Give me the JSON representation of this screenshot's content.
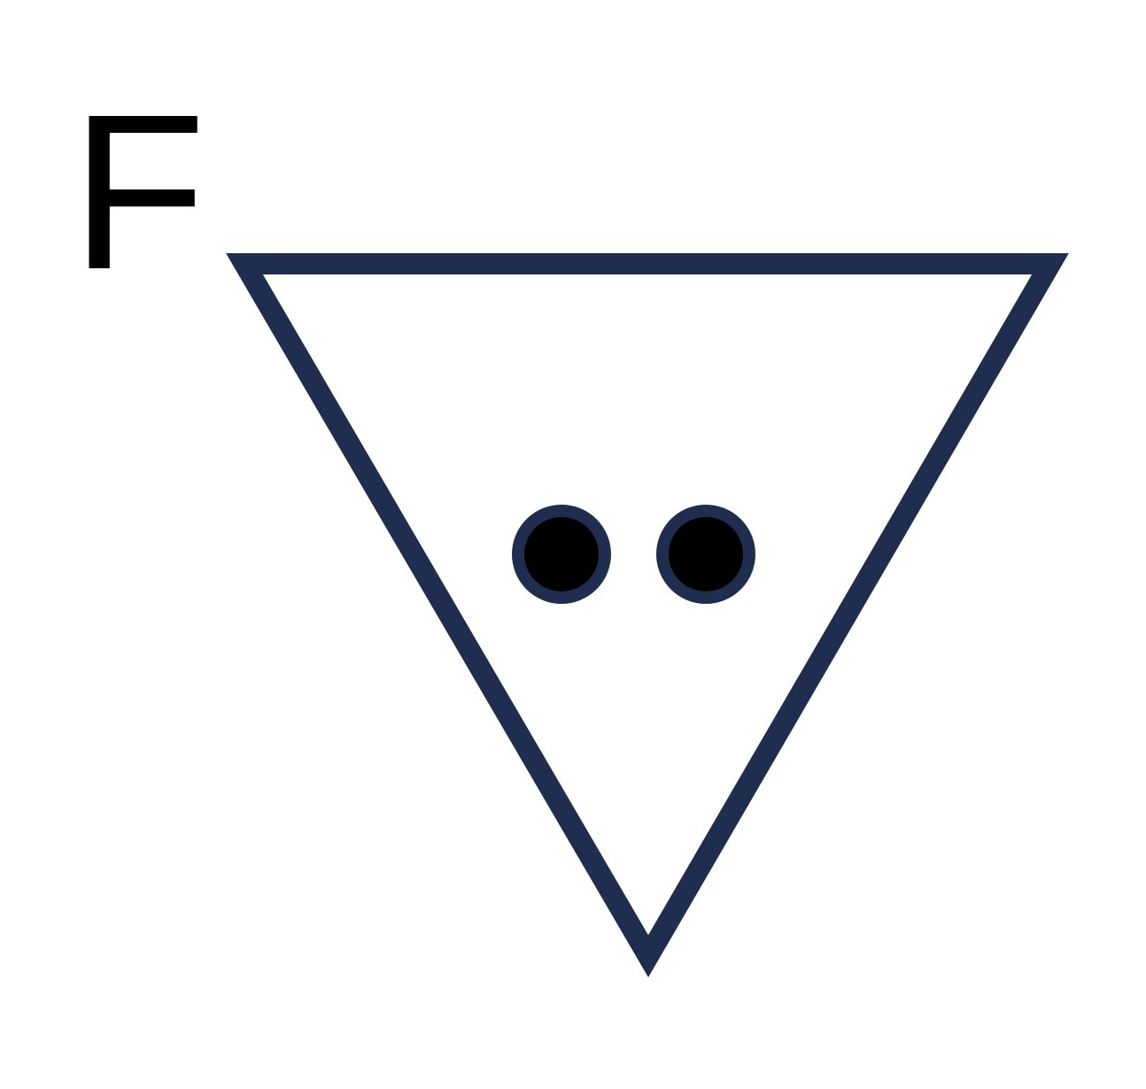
{
  "panel": {
    "label": "F"
  },
  "colors": {
    "outline": "#1f2d4f",
    "dot_fill": "#000000",
    "background": "#ffffff"
  },
  "diagram": {
    "shape": "inverted-triangle",
    "dot_count": 2
  }
}
